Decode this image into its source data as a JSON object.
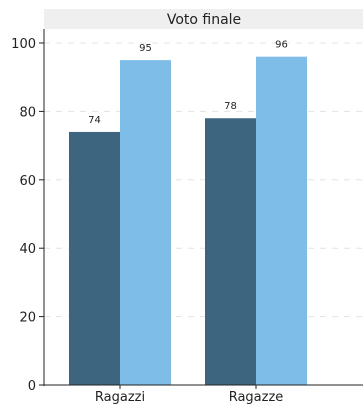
{
  "chart_data": {
    "type": "bar",
    "title": "Voto finale",
    "categories": [
      "Ragazzi",
      "Ragazze"
    ],
    "series": [
      {
        "values": [
          74,
          78
        ],
        "color": "#3e6580"
      },
      {
        "values": [
          95,
          96
        ],
        "color": "#7fbde9"
      }
    ],
    "ylim": [
      0,
      100
    ],
    "yticks": [
      0,
      20,
      40,
      60,
      80,
      100
    ],
    "grid": true,
    "legend": "none",
    "title_bg": "#efefef",
    "grid_color": "#e4e4e4"
  }
}
